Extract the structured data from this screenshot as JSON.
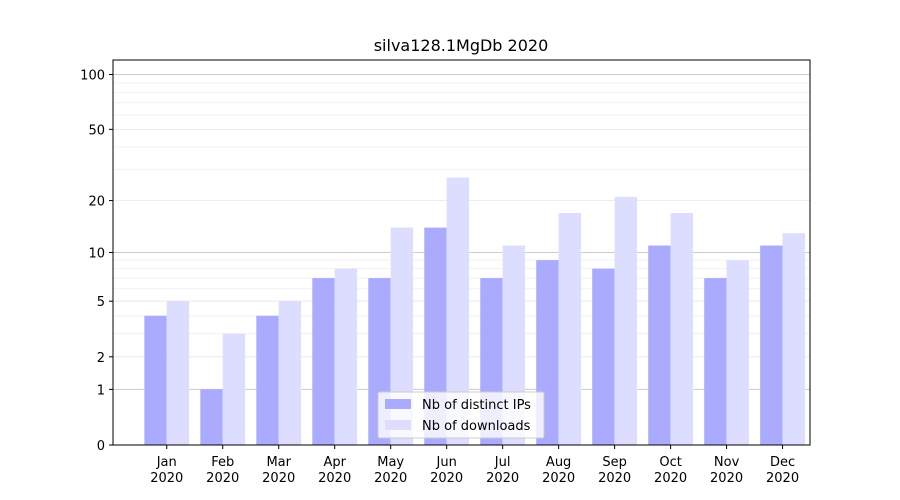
{
  "chart_data": {
    "type": "bar",
    "title": "silva128.1MgDb 2020",
    "xlabel": "",
    "ylabel": "",
    "y_scale": "symlog",
    "ylim": [
      0,
      120
    ],
    "y_ticks": [
      0,
      1,
      2,
      5,
      10,
      20,
      50,
      100
    ],
    "y_tick_labels": [
      "0",
      "1",
      "2",
      "5",
      "10",
      "20",
      "50",
      "100"
    ],
    "categories": [
      "Jan 2020",
      "Feb 2020",
      "Mar 2020",
      "Apr 2020",
      "May 2020",
      "Jun 2020",
      "Jul 2020",
      "Aug 2020",
      "Sep 2020",
      "Oct 2020",
      "Nov 2020",
      "Dec 2020"
    ],
    "category_lines": [
      [
        "Jan",
        "2020"
      ],
      [
        "Feb",
        "2020"
      ],
      [
        "Mar",
        "2020"
      ],
      [
        "Apr",
        "2020"
      ],
      [
        "May",
        "2020"
      ],
      [
        "Jun",
        "2020"
      ],
      [
        "Jul",
        "2020"
      ],
      [
        "Aug",
        "2020"
      ],
      [
        "Sep",
        "2020"
      ],
      [
        "Oct",
        "2020"
      ],
      [
        "Nov",
        "2020"
      ],
      [
        "Dec",
        "2020"
      ]
    ],
    "series": [
      {
        "name": "Nb of distinct IPs",
        "color": "#aaaaff",
        "values": [
          4,
          1,
          4,
          7,
          7,
          14,
          7,
          9,
          8,
          11,
          7,
          11
        ]
      },
      {
        "name": "Nb of downloads",
        "color": "#ddddff",
        "values": [
          5,
          3,
          5,
          8,
          14,
          27,
          11,
          17,
          21,
          17,
          9,
          13
        ]
      }
    ],
    "grid": true,
    "legend_position": "bottom-center"
  }
}
